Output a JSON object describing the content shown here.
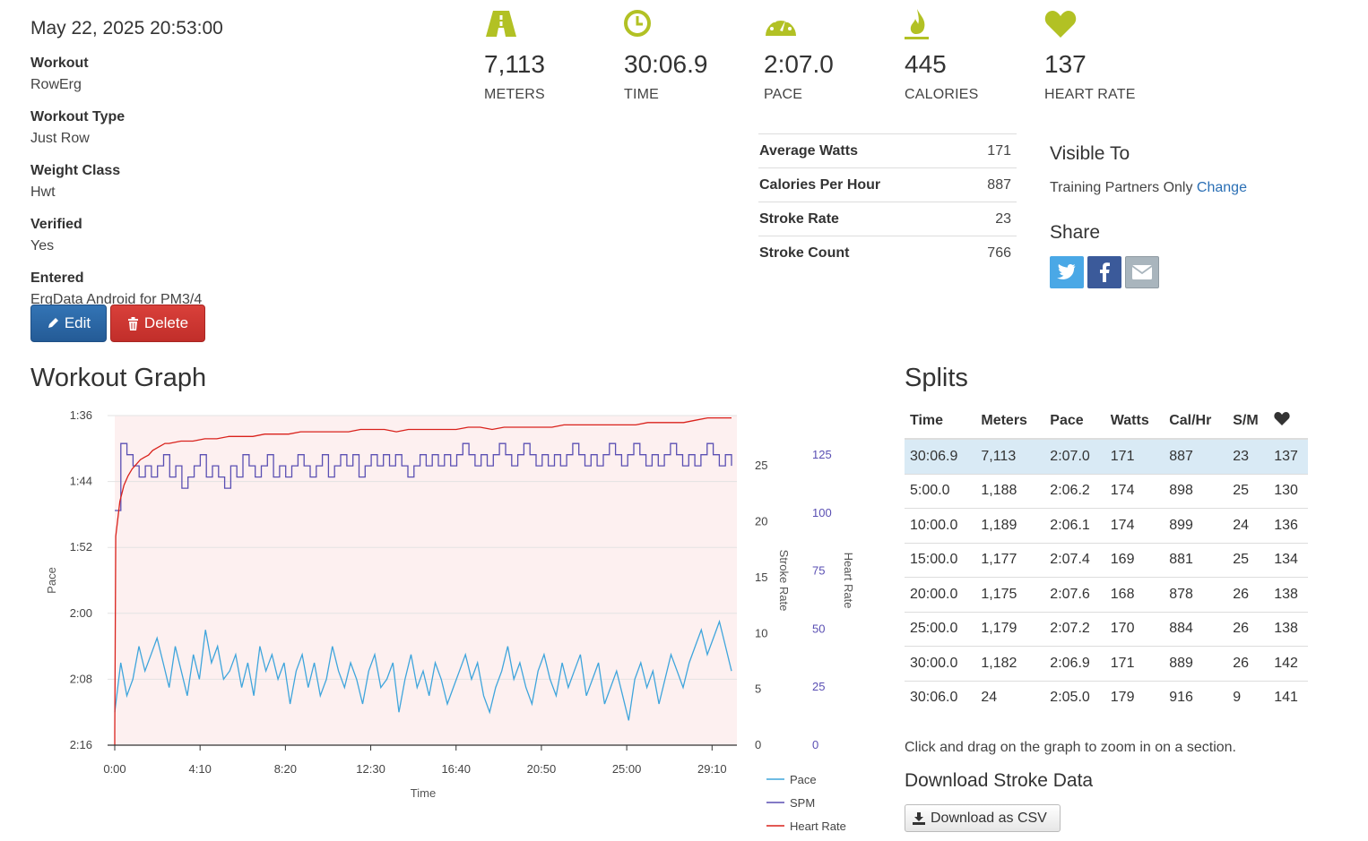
{
  "workout": {
    "date": "May 22, 2025 20:53:00",
    "fields": [
      {
        "label": "Workout",
        "value": "RowErg"
      },
      {
        "label": "Workout Type",
        "value": "Just Row"
      },
      {
        "label": "Weight Class",
        "value": "Hwt"
      },
      {
        "label": "Verified",
        "value": "Yes"
      },
      {
        "label": "Entered",
        "value": "ErgData Android for PM3/4"
      }
    ],
    "edit_label": "Edit",
    "delete_label": "Delete"
  },
  "stats": [
    {
      "icon": "road-icon",
      "value": "7,113",
      "label": "METERS"
    },
    {
      "icon": "clock-icon",
      "value": "30:06.9",
      "label": "TIME"
    },
    {
      "icon": "speedometer-icon",
      "value": "2:07.0",
      "label": "PACE"
    },
    {
      "icon": "flame-icon",
      "value": "445",
      "label": "CALORIES"
    },
    {
      "icon": "heart-icon",
      "value": "137",
      "label": "HEART RATE"
    }
  ],
  "accent_color": "#b2c124",
  "metrics": [
    {
      "label": "Average Watts",
      "value": "171"
    },
    {
      "label": "Calories Per Hour",
      "value": "887"
    },
    {
      "label": "Stroke Rate",
      "value": "23"
    },
    {
      "label": "Stroke Count",
      "value": "766"
    }
  ],
  "visibility": {
    "title": "Visible To",
    "value": "Training Partners Only",
    "change_label": "Change"
  },
  "share": {
    "title": "Share",
    "buttons": [
      "twitter-icon",
      "facebook-icon",
      "email-icon"
    ]
  },
  "graph": {
    "title": "Workout Graph"
  },
  "chart_data": {
    "type": "line",
    "xlabel": "Time",
    "x_ticks": [
      "0:00",
      "4:10",
      "8:20",
      "12:30",
      "16:40",
      "20:50",
      "25:00",
      "29:10"
    ],
    "x_range_seconds": [
      0,
      1807
    ],
    "axes": [
      {
        "name": "Pace",
        "ticks": [
          "1:36",
          "1:44",
          "1:52",
          "2:00",
          "2:08",
          "2:16"
        ],
        "range_seconds": [
          96,
          136
        ],
        "reversed": true
      },
      {
        "name": "Stroke Rate",
        "ticks": [
          "0",
          "5",
          "10",
          "15",
          "20",
          "25"
        ],
        "range": [
          0,
          29.5
        ]
      },
      {
        "name": "Heart Rate",
        "ticks": [
          "0",
          "25",
          "50",
          "75",
          "100",
          "125"
        ],
        "range": [
          0,
          142
        ]
      }
    ],
    "series": [
      {
        "name": "Pace",
        "color": "#3fa5dc",
        "approx_seconds": [
          132,
          126,
          130,
          128,
          124,
          127,
          125,
          123,
          126,
          129,
          124,
          127,
          130,
          125,
          128,
          122,
          126,
          124,
          128,
          127,
          125,
          129,
          126,
          130,
          124,
          127,
          125,
          128,
          126,
          131,
          127,
          125,
          129,
          126,
          130,
          128,
          124,
          127,
          129,
          126,
          128,
          131,
          127,
          125,
          129,
          128,
          126,
          132,
          128,
          125,
          129,
          127,
          130,
          126,
          128,
          131,
          129,
          127,
          125,
          128,
          126,
          130,
          132,
          129,
          127,
          124,
          128,
          126,
          129,
          131,
          127,
          125,
          128,
          130,
          126,
          129,
          127,
          125,
          130,
          128,
          126,
          131,
          129,
          127,
          130,
          133,
          128,
          126,
          129,
          127,
          131,
          128,
          125,
          127,
          129,
          126,
          124,
          122,
          125,
          123,
          121,
          124,
          127
        ]
      },
      {
        "name": "SPM",
        "color": "#5a4fb3",
        "approx_values": [
          21,
          27,
          26,
          25,
          24,
          25,
          24,
          25,
          26,
          24,
          25,
          23,
          24,
          25,
          26,
          24,
          25,
          24,
          23,
          25,
          24,
          26,
          25,
          24,
          25,
          26,
          24,
          25,
          24,
          25,
          26,
          25,
          24,
          25,
          26,
          24,
          25,
          26,
          25,
          26,
          24,
          25,
          26,
          25,
          26,
          25,
          26,
          25,
          24,
          25,
          26,
          25,
          26,
          25,
          26,
          25,
          26,
          27,
          26,
          25,
          26,
          25,
          26,
          27,
          26,
          25,
          26,
          27,
          26,
          25,
          26,
          25,
          26,
          25,
          26,
          27,
          26,
          25,
          26,
          25,
          26,
          27,
          26,
          25,
          26,
          27,
          26,
          25,
          26,
          25,
          26,
          27,
          26,
          25,
          26,
          25,
          26,
          27,
          26,
          25,
          26,
          25
        ]
      },
      {
        "name": "Heart Rate",
        "color": "#d9221c",
        "approx_values": [
          5,
          90,
          105,
          112,
          116,
          119,
          121,
          123,
          124,
          125,
          127,
          128,
          129,
          130,
          130,
          131,
          131,
          132,
          132,
          133,
          133,
          133,
          134,
          134,
          134,
          135,
          135,
          135,
          135,
          135,
          136,
          136,
          136,
          135,
          136,
          136,
          136,
          136,
          136,
          137,
          137,
          136,
          137,
          137,
          137,
          137,
          137,
          138,
          138,
          138,
          138,
          138,
          138,
          138,
          139,
          139,
          139,
          139,
          140,
          141,
          141,
          141
        ]
      }
    ],
    "legend": [
      "Pace",
      "SPM",
      "Heart Rate"
    ],
    "legend_position": "bottom-right"
  },
  "splits": {
    "title": "Splits",
    "headers": [
      "Time",
      "Meters",
      "Pace",
      "Watts",
      "Cal/Hr",
      "S/M",
      "heart-icon"
    ],
    "rows": [
      [
        "30:06.9",
        "7,113",
        "2:07.0",
        "171",
        "887",
        "23",
        "137"
      ],
      [
        "5:00.0",
        "1,188",
        "2:06.2",
        "174",
        "898",
        "25",
        "130"
      ],
      [
        "10:00.0",
        "1,189",
        "2:06.1",
        "174",
        "899",
        "24",
        "136"
      ],
      [
        "15:00.0",
        "1,177",
        "2:07.4",
        "169",
        "881",
        "25",
        "134"
      ],
      [
        "20:00.0",
        "1,175",
        "2:07.6",
        "168",
        "878",
        "26",
        "138"
      ],
      [
        "25:00.0",
        "1,179",
        "2:07.2",
        "170",
        "884",
        "26",
        "138"
      ],
      [
        "30:00.0",
        "1,182",
        "2:06.9",
        "171",
        "889",
        "26",
        "142"
      ],
      [
        "30:06.0",
        "24",
        "2:05.0",
        "179",
        "916",
        "9",
        "141"
      ]
    ]
  },
  "zoom_hint": "Click and drag on the graph to zoom in on a section.",
  "download": {
    "title": "Download Stroke Data",
    "button_label": "Download as CSV"
  }
}
